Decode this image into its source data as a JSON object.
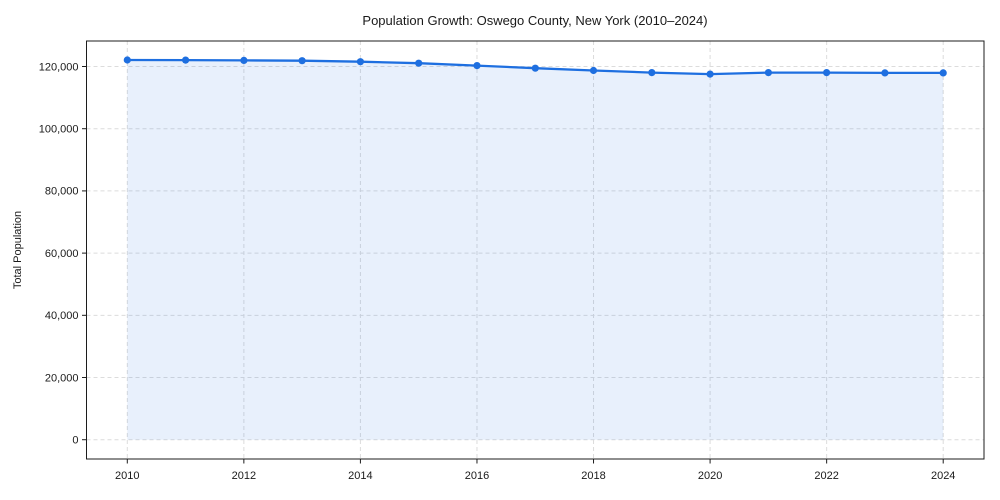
{
  "figure": {
    "title": "Population Growth: Oswego County, New York (2010–2024)",
    "ylabel": "Total Population"
  },
  "colors": {
    "line": "#1e6fe0",
    "fill": "#e8f0fc",
    "grid": "#dcdcdc",
    "spine": "#1c1c1c",
    "text": "#1a1a1a",
    "background": "#ffffff"
  },
  "chart_data": {
    "type": "line",
    "title": "Population Growth: Oswego County, New York (2010–2024)",
    "xlabel": "",
    "ylabel": "Total Population",
    "x": [
      2010,
      2011,
      2012,
      2013,
      2014,
      2015,
      2016,
      2017,
      2018,
      2019,
      2020,
      2021,
      2022,
      2023,
      2024
    ],
    "series": [
      {
        "name": "Total Population",
        "values": [
          122100,
          122050,
          121950,
          121850,
          121550,
          121050,
          120300,
          119450,
          118700,
          118050,
          117550,
          118050,
          118050,
          117950,
          117950
        ]
      }
    ],
    "area_fill": true,
    "area_baseline": 0,
    "marker": "circle",
    "grid": "dashed",
    "legend": "none",
    "xticks": [
      2010,
      2012,
      2014,
      2016,
      2018,
      2020,
      2022,
      2024
    ],
    "yticks": [
      0,
      20000,
      40000,
      60000,
      80000,
      100000,
      120000
    ],
    "ytick_labels": [
      "0",
      "20,000",
      "40,000",
      "60,000",
      "80,000",
      "100,000",
      "120,000"
    ],
    "xlim": [
      2009.3,
      2024.7
    ],
    "ylim": [
      -6200,
      128200
    ]
  }
}
